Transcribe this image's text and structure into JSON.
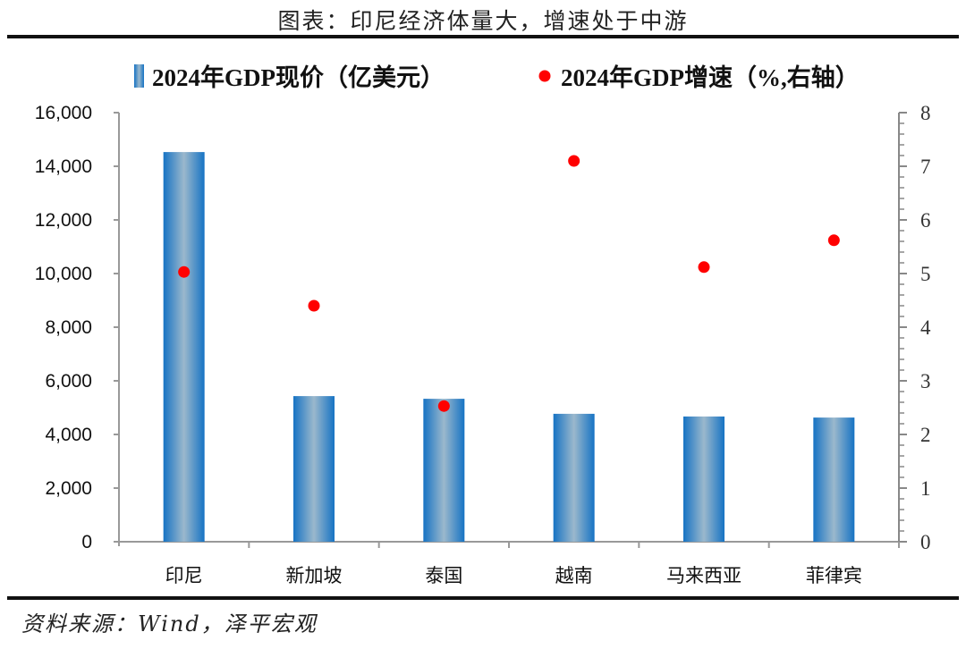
{
  "title": "图表：印尼经济体量大，增速处于中游",
  "source": "资料来源：Wind，泽平宏观",
  "chart_data": {
    "type": "bar+scatter",
    "categories": [
      "印尼",
      "新加坡",
      "泰国",
      "越南",
      "马来西亚",
      "菲律宾"
    ],
    "series": [
      {
        "name": "2024年GDP现价（亿美元）",
        "type": "bar",
        "axis": "left",
        "color": "#1f78c1",
        "values": [
          14530,
          5430,
          5330,
          4770,
          4670,
          4630
        ]
      },
      {
        "name": "2024年GDP增速（%,右轴）",
        "type": "scatter",
        "axis": "right",
        "color": "#ff0000",
        "values": [
          5.03,
          4.4,
          2.53,
          7.1,
          5.12,
          5.62
        ]
      }
    ],
    "left_axis": {
      "range": [
        0,
        16000
      ],
      "ticks": [
        "0",
        "2,000",
        "4,000",
        "6,000",
        "8,000",
        "10,000",
        "12,000",
        "14,000",
        "16,000"
      ]
    },
    "right_axis": {
      "range": [
        0,
        8
      ],
      "ticks": [
        "0",
        "1",
        "2",
        "3",
        "4",
        "5",
        "6",
        "7",
        "8"
      ]
    },
    "legend_position": "top",
    "grid": false
  }
}
